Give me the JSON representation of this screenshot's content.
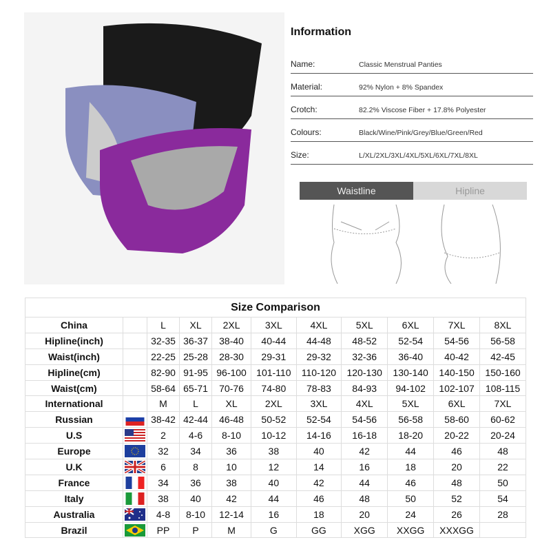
{
  "information": {
    "title": "Information",
    "rows": [
      {
        "label": "Name:",
        "value": "Classic  Menstrual Panties"
      },
      {
        "label": "Material:",
        "value": "92%  Nylon  +  8% Spandex"
      },
      {
        "label": "Crotch:",
        "value": "82.2% Viscose Fiber + 17.8% Polyester"
      },
      {
        "label": "Colours:",
        "value": "Black/Wine/Pink/Grey/Blue/Green/Red"
      },
      {
        "label": "Size:",
        "value": "L/XL/2XL/3XL/4XL/5XL/6XL/7XL/8XL"
      }
    ]
  },
  "measure_tabs": [
    {
      "label": "Waistline",
      "active": true
    },
    {
      "label": "Hipline",
      "active": false
    }
  ],
  "product_colors": {
    "black": "#1a1a1a",
    "grey_blue": "#8a8fc0",
    "purple": "#8a2a9c"
  },
  "size_table": {
    "title": "Size Comparison",
    "rows": [
      {
        "label": "China",
        "flag": "",
        "cells": [
          "L",
          "XL",
          "2XL",
          "3XL",
          "4XL",
          "5XL",
          "6XL",
          "7XL",
          "8XL"
        ]
      },
      {
        "label": "Hipline(inch)",
        "flag": "",
        "cells": [
          "32-35",
          "36-37",
          "38-40",
          "40-44",
          "44-48",
          "48-52",
          "52-54",
          "54-56",
          "56-58"
        ]
      },
      {
        "label": "Waist(inch)",
        "flag": "",
        "cells": [
          "22-25",
          "25-28",
          "28-30",
          "29-31",
          "29-32",
          "32-36",
          "36-40",
          "40-42",
          "42-45"
        ]
      },
      {
        "label": "Hipline(cm)",
        "flag": "",
        "cells": [
          "82-90",
          "91-95",
          "96-100",
          "101-110",
          "110-120",
          "120-130",
          "130-140",
          "140-150",
          "150-160"
        ]
      },
      {
        "label": "Waist(cm)",
        "flag": "",
        "cells": [
          "58-64",
          "65-71",
          "70-76",
          "74-80",
          "78-83",
          "84-93",
          "94-102",
          "102-107",
          "108-115"
        ]
      },
      {
        "label": "International",
        "flag": "",
        "cells": [
          "M",
          "L",
          "XL",
          "2XL",
          "3XL",
          "4XL",
          "5XL",
          "6XL",
          "7XL"
        ]
      },
      {
        "label": "Russian",
        "flag": "russia-flag-icon",
        "cells": [
          "38-42",
          "42-44",
          "46-48",
          "50-52",
          "52-54",
          "54-56",
          "56-58",
          "58-60",
          "60-62"
        ]
      },
      {
        "label": "U.S",
        "flag": "usa-flag-icon",
        "cells": [
          "2",
          "4-6",
          "8-10",
          "10-12",
          "14-16",
          "16-18",
          "18-20",
          "20-22",
          "20-24"
        ]
      },
      {
        "label": "Europe",
        "flag": "eu-flag-icon",
        "cells": [
          "32",
          "34",
          "36",
          "38",
          "40",
          "42",
          "44",
          "46",
          "48"
        ]
      },
      {
        "label": "U.K",
        "flag": "uk-flag-icon",
        "cells": [
          "6",
          "8",
          "10",
          "12",
          "14",
          "16",
          "18",
          "20",
          "22"
        ]
      },
      {
        "label": "France",
        "flag": "france-flag-icon",
        "cells": [
          "34",
          "36",
          "38",
          "40",
          "42",
          "44",
          "46",
          "48",
          "50"
        ]
      },
      {
        "label": "Italy",
        "flag": "italy-flag-icon",
        "cells": [
          "38",
          "40",
          "42",
          "44",
          "46",
          "48",
          "50",
          "52",
          "54"
        ]
      },
      {
        "label": "Australia",
        "flag": "australia-flag-icon",
        "cells": [
          "4-8",
          "8-10",
          "12-14",
          "16",
          "18",
          "20",
          "24",
          "26",
          "28"
        ]
      },
      {
        "label": "Brazil",
        "flag": "brazil-flag-icon",
        "cells": [
          "PP",
          "P",
          "M",
          "G",
          "GG",
          "XGG",
          "XXGG",
          "XXXGG",
          ""
        ]
      }
    ]
  }
}
